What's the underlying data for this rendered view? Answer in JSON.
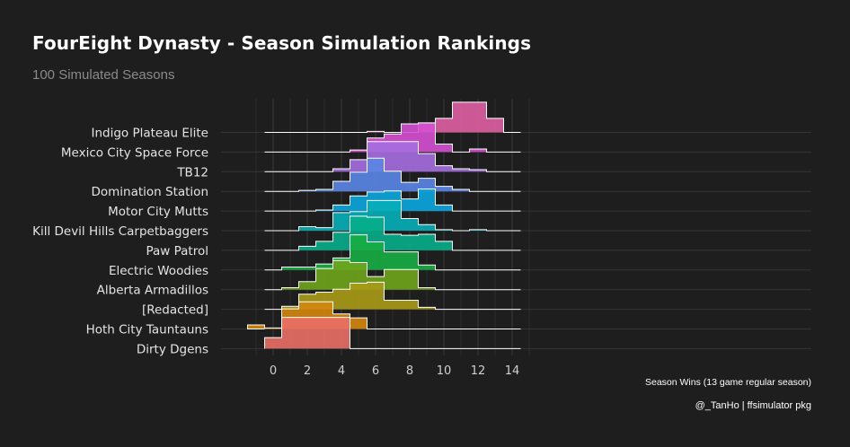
{
  "title": "FourEight Dynasty - Season Simulation Rankings",
  "subtitle": "100 Simulated Seasons",
  "caption": "@_TanHo | ffsimulator pkg",
  "chart_data": {
    "type": "ridgeline-histogram",
    "xlabel": "Season Wins (13 game regular season)",
    "xlim": [
      -1,
      15
    ],
    "xticks": [
      0,
      2,
      4,
      6,
      8,
      10,
      12,
      14
    ],
    "grid": true,
    "series": [
      {
        "name": "Indigo Plateau Elite",
        "color": "#df5fa3",
        "counts": {
          "6": 1,
          "9": 9,
          "10": 14,
          "11": 30,
          "12": 30,
          "13": 14
        }
      },
      {
        "name": "Mexico City Space Force",
        "color": "#d54fd1",
        "counts": {
          "5": 2,
          "6": 14,
          "7": 18,
          "8": 28,
          "9": 29,
          "10": 8,
          "12": 3
        }
      },
      {
        "name": "TB12",
        "color": "#a56ee0",
        "counts": {
          "4": 3,
          "5": 12,
          "6": 30,
          "7": 30,
          "8": 30,
          "9": 18,
          "10": 6,
          "11": 3,
          "12": 2
        }
      },
      {
        "name": "Domination Station",
        "color": "#5a86e6",
        "counts": {
          "2": 1,
          "3": 2,
          "4": 10,
          "5": 19,
          "6": 33,
          "7": 20,
          "8": 9,
          "9": 13,
          "10": 5,
          "11": 2
        }
      },
      {
        "name": "Motor City Mutts",
        "color": "#0aa7e0",
        "counts": {
          "3": 1,
          "4": 6,
          "5": 15,
          "6": 19,
          "7": 20,
          "8": 12,
          "9": 22,
          "10": 6
        }
      },
      {
        "name": "Kill Devil Hills Carpetbaggers",
        "color": "#05aeb8",
        "counts": {
          "2": 4,
          "3": 3,
          "4": 18,
          "5": 19,
          "6": 30,
          "7": 30,
          "8": 12,
          "9": 6,
          "10": 1,
          "12": 1
        }
      },
      {
        "name": "Paw Patrol",
        "color": "#06ae88",
        "counts": {
          "2": 4,
          "3": 9,
          "4": 18,
          "5": 34,
          "6": 33,
          "7": 16,
          "8": 15,
          "9": 16,
          "10": 9
        }
      },
      {
        "name": "Electric Woodies",
        "color": "#17ad43",
        "counts": {
          "1": 3,
          "2": 3,
          "3": 6,
          "4": 12,
          "5": 35,
          "6": 28,
          "7": 18,
          "8": 18,
          "9": 5
        }
      },
      {
        "name": "Alberta Armadillos",
        "color": "#6fa51b",
        "counts": {
          "1": 2,
          "2": 8,
          "3": 21,
          "4": 29,
          "5": 27,
          "6": 13,
          "7": 20,
          "8": 20,
          "9": 2
        }
      },
      {
        "name": "[Redacted]",
        "color": "#a99b17",
        "counts": {
          "1": 3,
          "2": 15,
          "3": 17,
          "4": 20,
          "5": 26,
          "6": 27,
          "7": 9,
          "8": 9,
          "9": 2
        }
      },
      {
        "name": "Hoth City Tauntauns",
        "color": "#d4870c",
        "counts": {
          "-1": 4,
          "0": 1,
          "1": 20,
          "2": 27,
          "3": 27,
          "4": 15,
          "5": 11
        }
      },
      {
        "name": "Dirty Dgens",
        "color": "#ea6f66",
        "counts": {
          "0": 11,
          "1": 31,
          "2": 31,
          "3": 31,
          "4": 31
        }
      }
    ]
  }
}
